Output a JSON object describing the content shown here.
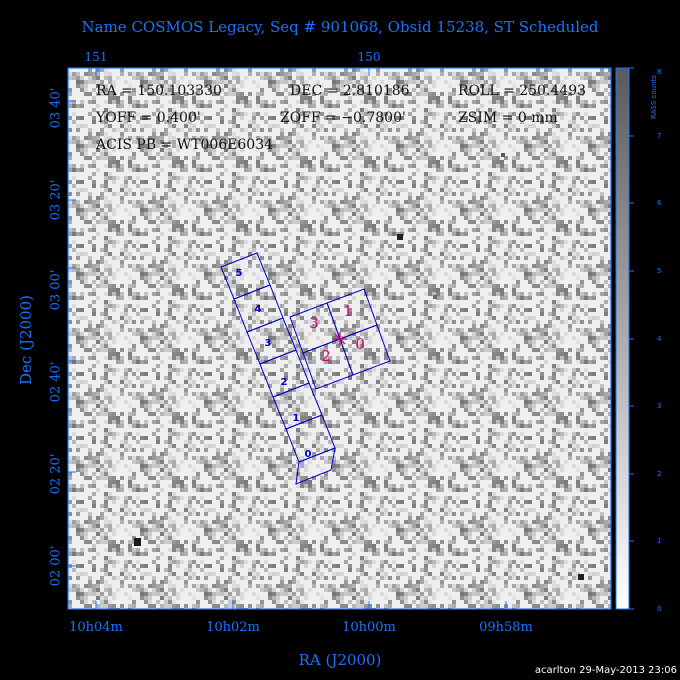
{
  "title": "Name COSMOS Legacy, Seq # 901068, Obsid 15238, ST Scheduled",
  "info": {
    "ra": "RA = 150.103330",
    "dec": "DEC = 2.810186",
    "roll": "ROLL = 250.4493",
    "yoff": "YOFF =    0.400'",
    "zoff": "ZOFF = −0.7800'",
    "zsim": "ZSIM = 0 mm",
    "acis": "ACIS PB = WT006E6034"
  },
  "axes": {
    "x_title": "RA (J2000)",
    "y_title": "Dec (J2000)",
    "x_top_ticks": [
      "151",
      "150"
    ],
    "x_bottom_ticks": [
      "10h04m",
      "10h02m",
      "10h00m",
      "09h58m"
    ],
    "y_ticks": [
      "03 40'",
      "03 20'",
      "03 00'",
      "02 40'",
      "02 20'",
      "02 00'"
    ]
  },
  "colorbar": {
    "title": "RASS counts",
    "ticks": [
      "0",
      "1",
      "2",
      "3",
      "4",
      "5",
      "6",
      "7",
      "8"
    ]
  },
  "chips": {
    "i_array": [
      "0",
      "1",
      "2",
      "3"
    ],
    "s_array": [
      "0",
      "1",
      "2",
      "3",
      "4",
      "5"
    ],
    "i_color": "#d4006f",
    "s_color": "#0000c8"
  },
  "colors": {
    "axis": "#1a73ff",
    "background": "#000000",
    "frame": "#1a73ff"
  },
  "credit": "acarlton 29-May-2013 23:06"
}
